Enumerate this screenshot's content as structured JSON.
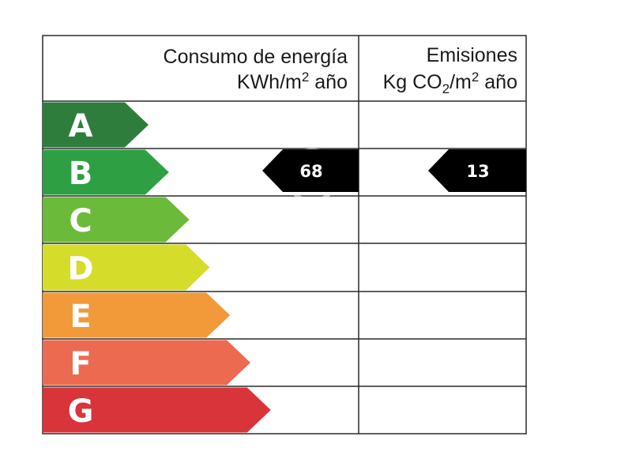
{
  "header": {
    "consumption_title": "Consumo de energía",
    "consumption_unit_prefix": "KWh/m",
    "consumption_unit_sup": "2",
    "consumption_unit_suffix": " año",
    "emissions_title": "Emisiones",
    "emissions_unit_prefix": "Kg CO",
    "emissions_unit_sub": "2",
    "emissions_unit_mid": "/m",
    "emissions_unit_sup": "2",
    "emissions_unit_suffix": " año"
  },
  "ratings": [
    {
      "letter": "A",
      "color": "#2e7d3c"
    },
    {
      "letter": "B",
      "color": "#2ea043"
    },
    {
      "letter": "C",
      "color": "#6cba3a"
    },
    {
      "letter": "D",
      "color": "#d6dc2a"
    },
    {
      "letter": "E",
      "color": "#f29a3a"
    },
    {
      "letter": "F",
      "color": "#ec6a50"
    },
    {
      "letter": "G",
      "color": "#d8343a"
    }
  ],
  "consumption": {
    "rating": "B",
    "value": "68"
  },
  "emissions": {
    "rating": "B",
    "value": "13"
  },
  "watermark": {
    "brand": "habitaclia"
  }
}
